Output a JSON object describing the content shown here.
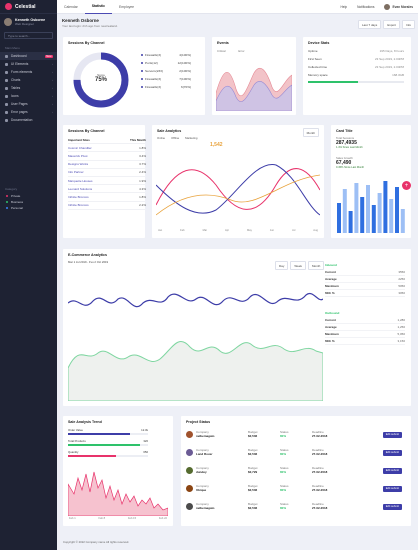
{
  "brand": {
    "name": "Celestial"
  },
  "user": {
    "name": "Kenneth Osborne",
    "role": "Web Designer"
  },
  "sidebar": {
    "search_placeholder": "Type to search...",
    "section_main": "Main Menu",
    "items": [
      {
        "label": "Dashboard",
        "badge": "New",
        "icon": "home-icon"
      },
      {
        "label": "UI Elements",
        "icon": "grid-icon"
      },
      {
        "label": "Form elements",
        "icon": "form-icon"
      },
      {
        "label": "Charts",
        "icon": "chart-icon"
      },
      {
        "label": "Tables",
        "icon": "table-icon"
      },
      {
        "label": "Icons",
        "icon": "star-icon"
      },
      {
        "label": "User Pages",
        "icon": "user-icon"
      },
      {
        "label": "Error pages",
        "icon": "alert-icon"
      },
      {
        "label": "Documentation",
        "icon": "doc-icon"
      }
    ],
    "section_labels": "Category",
    "labels": [
      {
        "label": "Private",
        "color": "#e8336b"
      },
      {
        "label": "Business",
        "color": "#2ec26b"
      },
      {
        "label": "Personal",
        "color": "#3b82f6"
      }
    ]
  },
  "topbar": {
    "tabs": [
      "Calendar",
      "Statistic",
      "Employee"
    ],
    "help": "Help",
    "notif": "Notifications",
    "user": "Evan Morales"
  },
  "header": {
    "title": "Kenneth Osborne",
    "subtitle": "Your last login: 21h ago from newzealand.",
    "btn_range": "Last 7 days",
    "btn_export": "Export",
    "btn_info": "Info"
  },
  "sessions": {
    "title": "Sessions By Channel",
    "center_label": "Score",
    "center_value": "75%",
    "legend": [
      {
        "label": "Firewalls(3)",
        "value": "4(100%)",
        "color": "#3d3da8"
      },
      {
        "label": "Ports(12)",
        "value": "12(100%)",
        "color": "#3d3da8"
      },
      {
        "label": "Servers(233)",
        "value": "2(100%)",
        "color": "#3d3da8"
      },
      {
        "label": "Firewalls(3)",
        "value": "7(100%)",
        "color": "#3d3da8"
      },
      {
        "label": "Firewalls(3)",
        "value": "6(70%)",
        "color": "#3d3da8"
      }
    ]
  },
  "events": {
    "title": "Events",
    "legend_a": "Critical",
    "legend_b": "Error"
  },
  "device": {
    "title": "Device Stats",
    "rows": [
      {
        "k": "Uptime",
        "v": "195 Days, 8 hours"
      },
      {
        "k": "First Seen",
        "v": "23 Sep 2019, 2.04PM"
      },
      {
        "k": "Collected time",
        "v": "23 Sep 2019, 2.04PM"
      },
      {
        "k": "Memory space",
        "v": "168.3GB"
      }
    ],
    "progress": 0.52
  },
  "sessions_table": {
    "title": "Sessions By Channel",
    "head": [
      "Important Sites",
      "This Month"
    ],
    "rows": [
      {
        "site": "Cosmic Chandlier",
        "val": "1.8%"
      },
      {
        "site": "Maverick Pivot",
        "val": "3.4%"
      },
      {
        "site": "Designs Works",
        "val": "3.7%"
      },
      {
        "site": "Info Partner",
        "val": "2.4%"
      },
      {
        "site": "Marquette Houses",
        "val": "1.9%"
      },
      {
        "site": "Leonard Solutions",
        "val": "4.3%"
      },
      {
        "site": "Infinite Broncos",
        "val": "1.8%"
      },
      {
        "site": "Infinite Broncos",
        "val": "2.2%"
      }
    ]
  },
  "sale_analytics": {
    "title": "Sale Analytics",
    "btn": "Month",
    "legend": [
      "Online",
      "Offline",
      "Marketing"
    ],
    "value": "1,542",
    "xlabels": [
      "Jan",
      "Feb",
      "Mar",
      "Apr",
      "May",
      "Jun",
      "Jul",
      "Aug"
    ]
  },
  "card_title": {
    "title": "Card Title",
    "k1": "Total Sessions",
    "v1": "287,4935",
    "s1": "1.4% Since Last Month",
    "k2": "Sales Growth",
    "v2": "67,490",
    "s2": "0.45% Since Last Month"
  },
  "ecommerce": {
    "title": "E-Commerce Analytics",
    "range": "Mar 1 Jul 2019 - Fvu 2 Oct 2019",
    "btns": [
      "Day",
      "Week",
      "Month"
    ],
    "side1_title": "Inbound",
    "side1": [
      {
        "k": "Current",
        "v": "3550"
      },
      {
        "k": "Average",
        "v": "2250"
      },
      {
        "k": "Maximum",
        "v": "5050"
      },
      {
        "k": "60th %",
        "v": "3050"
      }
    ],
    "side2_title": "Outbound",
    "side2": [
      {
        "k": "Current",
        "v": "1,280"
      },
      {
        "k": "Average",
        "v": "1,250"
      },
      {
        "k": "Maximum",
        "v": "5,050"
      },
      {
        "k": "60th %",
        "v": "3,150"
      }
    ]
  },
  "sale_trend": {
    "title": "Sale Analysis Trend",
    "bars": [
      {
        "label": "Order Value",
        "value": "12.3k",
        "pct": 0.78,
        "color": "#3d3da8"
      },
      {
        "label": "Total Products",
        "value": "320",
        "pct": 0.9,
        "color": "#2ec26b"
      },
      {
        "label": "Quantity",
        "value": "650",
        "pct": 0.6,
        "color": "#e8336b"
      }
    ],
    "xlabels": [
      "Feb 1",
      "Feb 8",
      "Feb 15",
      "Feb 22"
    ]
  },
  "project": {
    "title": "Project Status",
    "rows": [
      {
        "company": "Company",
        "name": "nelbemagato",
        "budget": "$2,536",
        "status": "80%",
        "deadline": "27-02-2018",
        "btn": "Edit submit",
        "color": "#a0522d"
      },
      {
        "company": "Company",
        "name": "Land Rover",
        "budget": "$2,536",
        "status": "80%",
        "deadline": "27-02-2018",
        "btn": "Edit submit",
        "color": "#6b5b95"
      },
      {
        "company": "Company",
        "name": "dundey",
        "budget": "$2,729",
        "status": "80%",
        "deadline": "27-02-2018",
        "btn": "Edit submit",
        "color": "#556b2f"
      },
      {
        "company": "Company",
        "name": "Ubique",
        "budget": "$2,536",
        "status": "80%",
        "deadline": "27-02-2018",
        "btn": "Edit submit",
        "color": "#8b4513"
      },
      {
        "company": "Company",
        "name": "nelbemagato",
        "budget": "$2,536",
        "status": "80%",
        "deadline": "27-02-2018",
        "btn": "Edit submit",
        "color": "#4b4b4b"
      }
    ],
    "head_budget": "Budget",
    "head_status": "Status",
    "head_deadline": "Deadline"
  },
  "footer": {
    "text": "Copyright © 2022 Company name All rights reserved."
  }
}
